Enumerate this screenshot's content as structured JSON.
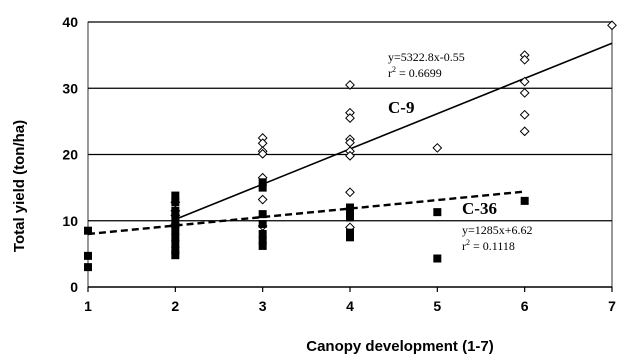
{
  "chart_data": {
    "type": "scatter",
    "xlabel": "Canopy development (1-7)",
    "ylabel": "Total yield (ton/ha)",
    "xlim": [
      1,
      7
    ],
    "ylim": [
      0,
      40
    ],
    "x_ticks": [
      "1",
      "2",
      "3",
      "4",
      "5",
      "6",
      "7"
    ],
    "y_ticks": [
      "0",
      "10",
      "20",
      "30",
      "40"
    ],
    "grid": "horizontal",
    "series": [
      {
        "name": "C-9",
        "marker": "open-diamond",
        "color": "#000000",
        "points": [
          [
            2,
            12.8
          ],
          [
            2,
            11.5
          ],
          [
            2,
            10.8
          ],
          [
            2,
            9.5
          ],
          [
            3,
            22.5
          ],
          [
            3,
            21.7
          ],
          [
            3,
            20.5
          ],
          [
            3,
            20.1
          ],
          [
            3,
            16.5
          ],
          [
            3,
            13.2
          ],
          [
            3,
            9.2
          ],
          [
            4,
            30.5
          ],
          [
            4,
            26.3
          ],
          [
            4,
            25.5
          ],
          [
            4,
            22.3
          ],
          [
            4,
            21.8
          ],
          [
            4,
            20.5
          ],
          [
            4,
            19.8
          ],
          [
            4,
            14.3
          ],
          [
            4,
            9.0
          ],
          [
            5,
            21.0
          ],
          [
            6,
            35.0
          ],
          [
            6,
            34.3
          ],
          [
            6,
            31.0
          ],
          [
            6,
            29.3
          ],
          [
            6,
            26.0
          ],
          [
            6,
            23.5
          ],
          [
            7,
            39.5
          ]
        ],
        "fit": {
          "type": "solid",
          "x": [
            2,
            7
          ],
          "y": [
            10.2,
            36.8
          ]
        },
        "equation": "y=5322.8x-0.55",
        "r2_prefix": "r",
        "r2_sup": "2",
        "r2_value": " = 0.6699"
      },
      {
        "name": "C-36",
        "marker": "filled-square",
        "color": "#000000",
        "points": [
          [
            1,
            8.5
          ],
          [
            1,
            4.7
          ],
          [
            1,
            3.0
          ],
          [
            2,
            13.8
          ],
          [
            2,
            12.8
          ],
          [
            2,
            11.5
          ],
          [
            2,
            10.5
          ],
          [
            2,
            9.5
          ],
          [
            2,
            8.5
          ],
          [
            2,
            7.5
          ],
          [
            2,
            6.5
          ],
          [
            2,
            5.5
          ],
          [
            2,
            4.8
          ],
          [
            3,
            15.8
          ],
          [
            3,
            15.0
          ],
          [
            3,
            11.0
          ],
          [
            3,
            9.5
          ],
          [
            3,
            8.0
          ],
          [
            3,
            7.0
          ],
          [
            3,
            6.2
          ],
          [
            4,
            12.0
          ],
          [
            4,
            11.0
          ],
          [
            4,
            10.5
          ],
          [
            4,
            8.2
          ],
          [
            4,
            7.5
          ],
          [
            5,
            11.3
          ],
          [
            5,
            4.3
          ],
          [
            6,
            13.0
          ]
        ],
        "fit": {
          "type": "dashed",
          "x": [
            1,
            6
          ],
          "y": [
            8.0,
            14.4
          ]
        },
        "equation": "y=1285x+6.62",
        "r2_prefix": "r",
        "r2_sup": "2",
        "r2_value": " = 0.1118"
      }
    ]
  }
}
